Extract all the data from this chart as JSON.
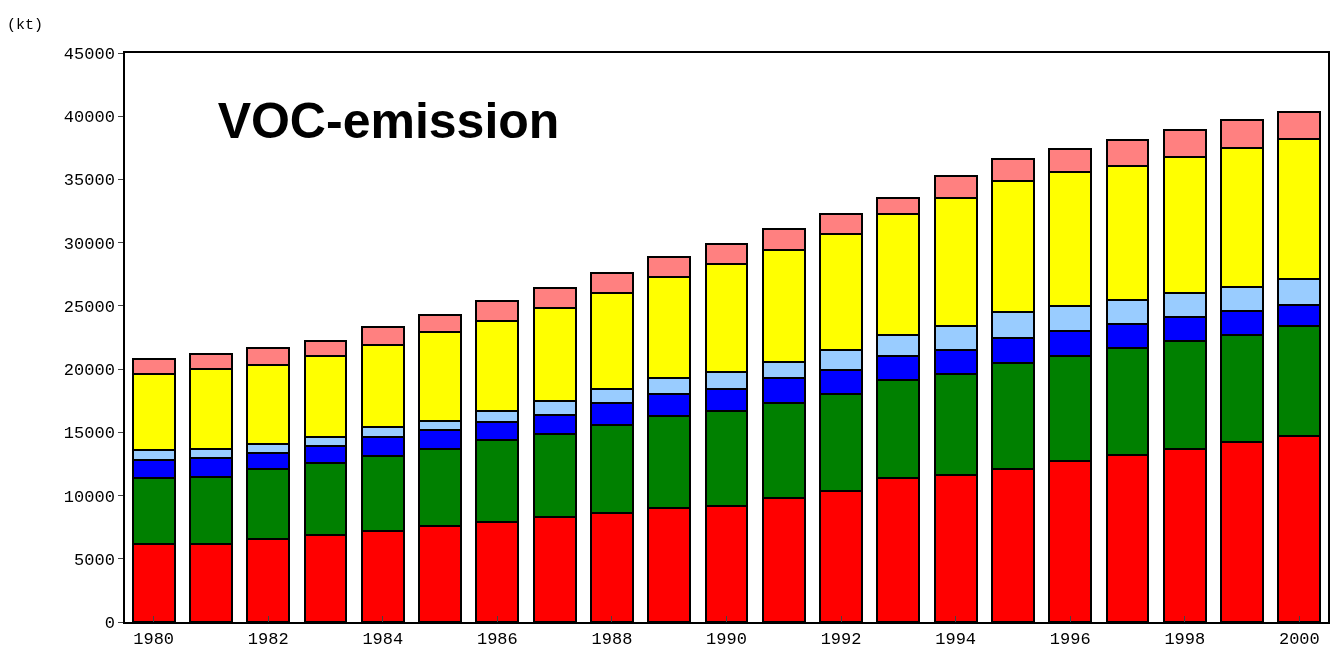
{
  "chart_data": {
    "type": "bar",
    "title": "VOC-emission",
    "ylabel": "(kt)",
    "stacked": true,
    "categories": [
      "1980",
      null,
      "1982",
      null,
      "1984",
      null,
      "1986",
      null,
      "1988",
      null,
      "1990",
      null,
      "1992",
      null,
      "1994",
      null,
      "1996",
      null,
      "1998",
      null,
      "2000"
    ],
    "series": [
      {
        "color": "#ff0000",
        "values": [
          6200,
          6200,
          6600,
          6900,
          7200,
          7600,
          7900,
          8300,
          8600,
          9000,
          9200,
          9800,
          10400,
          11400,
          11600,
          12100,
          12700,
          13200,
          13700,
          14200,
          14700
        ]
      },
      {
        "color": "#008000",
        "values": [
          5200,
          5300,
          5500,
          5700,
          5900,
          6100,
          6500,
          6600,
          7000,
          7300,
          7500,
          7500,
          7600,
          7700,
          8000,
          8400,
          8300,
          8500,
          8500,
          8500,
          8700
        ]
      },
      {
        "color": "#0000ff",
        "values": [
          1400,
          1500,
          1300,
          1300,
          1500,
          1500,
          1400,
          1500,
          1700,
          1700,
          1700,
          2000,
          1900,
          1900,
          1900,
          2000,
          2000,
          1900,
          1900,
          1900,
          1700
        ]
      },
      {
        "color": "#99ccff",
        "values": [
          800,
          700,
          700,
          700,
          800,
          700,
          900,
          1100,
          1100,
          1300,
          1400,
          1300,
          1600,
          1700,
          1900,
          2000,
          2000,
          1900,
          1900,
          1900,
          2000
        ]
      },
      {
        "color": "#ffff00",
        "values": [
          6000,
          6300,
          6200,
          6400,
          6500,
          7000,
          7100,
          7300,
          7600,
          8000,
          8500,
          8800,
          9200,
          9600,
          10100,
          10400,
          10600,
          10600,
          10800,
          11000,
          11100
        ]
      },
      {
        "color": "#ff8080",
        "values": [
          1200,
          1200,
          1400,
          1200,
          1400,
          1400,
          1600,
          1600,
          1600,
          1600,
          1600,
          1700,
          1600,
          1200,
          1800,
          1700,
          1800,
          2000,
          2100,
          2200,
          2100
        ]
      }
    ],
    "ylim": [
      0,
      45000
    ],
    "yticks": [
      0,
      5000,
      10000,
      15000,
      20000,
      25000,
      30000,
      35000,
      40000,
      45000
    ],
    "grid": false
  }
}
